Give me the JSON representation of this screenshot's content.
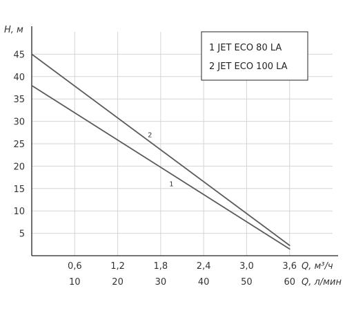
{
  "chart_data": {
    "type": "line",
    "ylabel": "H, м",
    "xlabel_primary": "Q, м³/ч",
    "xlabel_secondary": "Q, л/мин",
    "grid": true,
    "legend_position": "top-right",
    "xlim": [
      0,
      4.2
    ],
    "ylim": [
      0,
      50
    ],
    "x_ticks_primary": [
      "0,6",
      "1,2",
      "1,8",
      "2,4",
      "3,0",
      "3,6"
    ],
    "x_ticks_secondary": [
      "10",
      "20",
      "30",
      "40",
      "50",
      "60"
    ],
    "x_tick_values": [
      0.6,
      1.2,
      1.8,
      2.4,
      3.0,
      3.6
    ],
    "y_ticks": [
      "5",
      "10",
      "15",
      "20",
      "25",
      "30",
      "35",
      "40",
      "45"
    ],
    "y_tick_values": [
      5,
      10,
      15,
      20,
      25,
      30,
      35,
      40,
      45
    ],
    "series": [
      {
        "name": "JET ECO 80 LA",
        "number": "1",
        "label_x": 1.95,
        "label_y": 15.5,
        "x": [
          0,
          3.6
        ],
        "y": [
          38,
          1.5
        ]
      },
      {
        "name": "JET ECO 100 LA",
        "number": "2",
        "label_x": 1.65,
        "label_y": 26.5,
        "x": [
          0,
          3.6
        ],
        "y": [
          45,
          2.3
        ]
      }
    ],
    "legend_entries": [
      "1 JET ECO 80 LA",
      "2 JET ECO 100 LA"
    ],
    "colors": {
      "line": "#5a5a5a",
      "grid": "#d4d4d4",
      "axis": "#222222",
      "text": "#333333"
    }
  }
}
